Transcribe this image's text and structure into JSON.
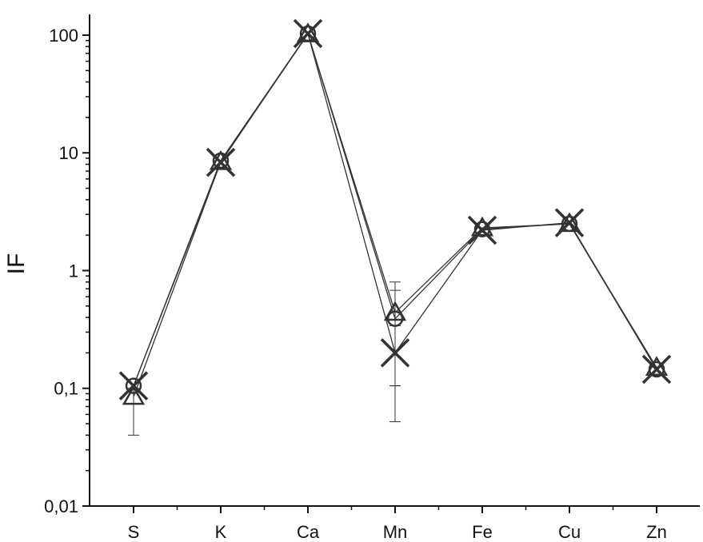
{
  "chart_data": {
    "type": "line",
    "ylabel": "IF",
    "xlabel": "",
    "yscale": "log",
    "ylim": [
      0.01,
      150
    ],
    "y_ticks": [
      {
        "value": 0.01,
        "label": "0,01"
      },
      {
        "value": 0.1,
        "label": "0,1"
      },
      {
        "value": 1,
        "label": "1"
      },
      {
        "value": 10,
        "label": "10"
      },
      {
        "value": 100,
        "label": "100"
      }
    ],
    "categories": [
      "S",
      "K",
      "Ca",
      "Mn",
      "Fe",
      "Cu",
      "Zn"
    ],
    "grid": false,
    "legend": "none",
    "colors": {
      "line": "#333333",
      "axis": "#111111"
    },
    "series": [
      {
        "marker": "circle",
        "values": [
          0.105,
          8.6,
          103,
          0.39,
          2.25,
          2.5,
          0.145
        ],
        "error": {
          "3": [
            0.105,
            0.68
          ]
        }
      },
      {
        "marker": "triangle",
        "values": [
          0.085,
          8.4,
          102,
          0.44,
          2.3,
          2.5,
          0.15
        ],
        "error": {
          "0": [
            0.04,
            0.1
          ],
          "3": [
            0.105,
            0.8
          ]
        }
      },
      {
        "marker": "x",
        "values": [
          0.105,
          8.3,
          103,
          0.2,
          2.2,
          2.55,
          0.145
        ],
        "error": {
          "3": [
            0.052,
            0.34
          ]
        }
      }
    ]
  }
}
